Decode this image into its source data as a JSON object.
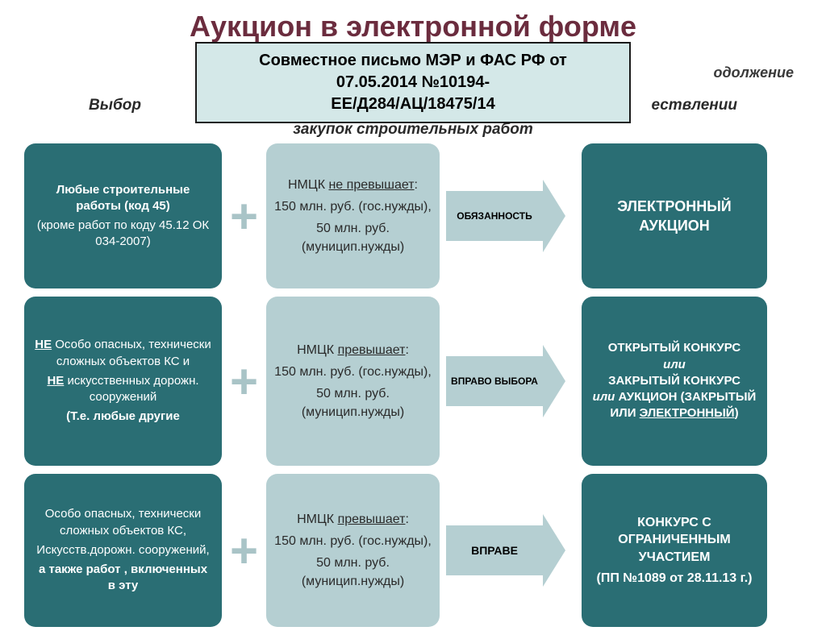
{
  "title": "Аукцион в электронной форме",
  "continuation": "одолжение",
  "subtitle_left": "Выбор",
  "subtitle_right": "ествлении",
  "subtitle_line2": "закупок строительных работ",
  "notice": {
    "line1": "Совместное письмо МЭР и ФАС РФ  от",
    "line2": "07.05.2014 №10194-",
    "line3": "ЕЕ/Д284/АЦ/18475/14"
  },
  "colors": {
    "teal": "#2a6e74",
    "lightTeal": "#b5cfd2",
    "plus": "#a9c4c7",
    "titleColor": "#6b2c3e",
    "noticeBg": "#d4e8e8"
  },
  "rows": [
    {
      "left": {
        "l1": "Любые строительные работы (код 45)",
        "l2": "(кроме работ по коду 45.12  ОК 034-2007)"
      },
      "mid": {
        "head_a": "НМЦК ",
        "head_u": "не превышает",
        "v1": "150 млн. руб. (гос.нужды),",
        "v2": "50 млн. руб. (муницип.нужды)"
      },
      "arrow": "ОБЯЗАННОСТЬ",
      "right": {
        "main": "ЭЛЕКТРОННЫЙ АУКЦИОН"
      }
    },
    {
      "left": {
        "l1a": "НЕ",
        "l1b": " Особо опасных, технически сложных объектов КС и",
        "l2a": "НЕ",
        "l2b": " искусственных дорожн. сооружений",
        "l3": "(Т.е. любые другие"
      },
      "mid": {
        "head_a": "НМЦК ",
        "head_u": "превышает",
        "v1": "150 млн. руб. (гос.нужды),",
        "v2": "50 млн. руб. (муницип.нужды)"
      },
      "arrow": "ВПРАВО ВЫБОРА",
      "right": {
        "r1": "ОТКРЫТЫЙ КОНКУРС",
        "or1": "или",
        "r2": "ЗАКРЫТЫЙ КОНКУРС",
        "or2": "или",
        "r3a": "  АУКЦИОН (ЗАКРЫТЫЙ ИЛИ ",
        "r3u": "ЭЛЕКТРОННЫЙ",
        "r3c": ")"
      }
    },
    {
      "left": {
        "l1": "Особо опасных, технически сложных объектов КС,",
        "l2": "Искусств.дорожн. сооружений,",
        "l3": "а также работ , включенных в эту"
      },
      "mid": {
        "head_a": "НМЦК ",
        "head_u": "превышает",
        "v1": "150 млн. руб. (гос.нужды),",
        "v2": "50 млн. руб. (муницип.нужды)"
      },
      "arrow": "ВПРАВЕ",
      "right": {
        "r1": "КОНКУРС С ОГРАНИЧЕННЫМ УЧАСТИЕМ",
        "r2": "(ПП №1089 от 28.11.13 г.)"
      }
    }
  ]
}
